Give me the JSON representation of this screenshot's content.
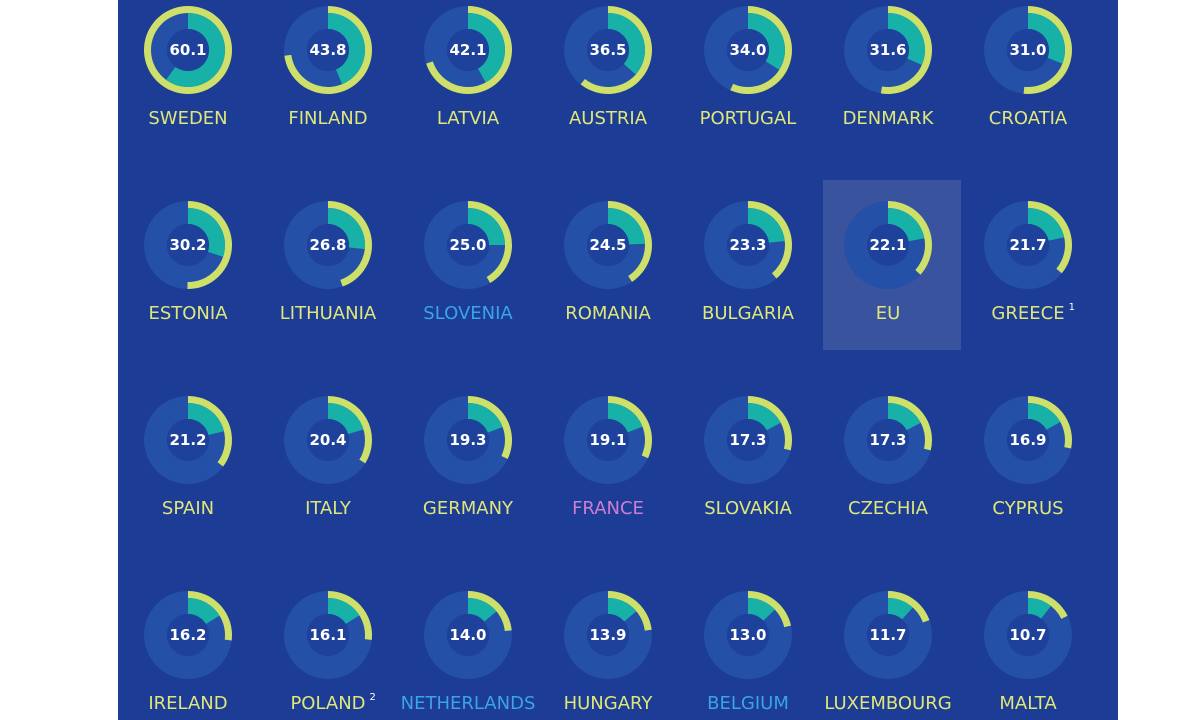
{
  "chart_data": {
    "type": "radial-bar",
    "title": "",
    "colors": {
      "background": "#1c3c95",
      "ring_track": "#2450a8",
      "inner_disc": "#1e419c",
      "arc_outer": "#cfe06a",
      "arc_inner": "#17b1a8",
      "highlight_box": "#5266a8",
      "label_default": "#dfe67a",
      "label_blue": "#3aa3ea",
      "label_pink": "#cc7fd0"
    },
    "columns": 7,
    "items": [
      {
        "country": "SWEDEN",
        "value": "60.1",
        "outer_pct": 100,
        "inner_pct": 60.1,
        "label_color": "default"
      },
      {
        "country": "FINLAND",
        "value": "43.8",
        "outer_pct": 72.9,
        "inner_pct": 43.8,
        "label_color": "default"
      },
      {
        "country": "LATVIA",
        "value": "42.1",
        "outer_pct": 70.0,
        "inner_pct": 42.1,
        "label_color": "default"
      },
      {
        "country": "AUSTRIA",
        "value": "36.5",
        "outer_pct": 60.7,
        "inner_pct": 36.5,
        "label_color": "default"
      },
      {
        "country": "PORTUGAL",
        "value": "34.0",
        "outer_pct": 56.6,
        "inner_pct": 34.0,
        "label_color": "default"
      },
      {
        "country": "DENMARK",
        "value": "31.6",
        "outer_pct": 52.6,
        "inner_pct": 31.6,
        "label_color": "default"
      },
      {
        "country": "CROATIA",
        "value": "31.0",
        "outer_pct": 51.6,
        "inner_pct": 31.0,
        "label_color": "default"
      },
      {
        "country": "ESTONIA",
        "value": "30.2",
        "outer_pct": 50.2,
        "inner_pct": 30.2,
        "label_color": "default"
      },
      {
        "country": "LITHUANIA",
        "value": "26.8",
        "outer_pct": 44.6,
        "inner_pct": 26.8,
        "label_color": "default"
      },
      {
        "country": "SLOVENIA",
        "value": "25.0",
        "outer_pct": 41.6,
        "inner_pct": 25.0,
        "label_color": "blue"
      },
      {
        "country": "ROMANIA",
        "value": "24.5",
        "outer_pct": 40.8,
        "inner_pct": 24.5,
        "label_color": "default"
      },
      {
        "country": "BULGARIA",
        "value": "23.3",
        "outer_pct": 38.8,
        "inner_pct": 23.3,
        "label_color": "default"
      },
      {
        "country": "EU",
        "value": "22.1",
        "outer_pct": 36.8,
        "inner_pct": 22.1,
        "label_color": "default",
        "highlight": true
      },
      {
        "country": "GREECE",
        "value": "21.7",
        "outer_pct": 36.1,
        "inner_pct": 21.7,
        "label_color": "default",
        "note": "1"
      },
      {
        "country": "SPAIN",
        "value": "21.2",
        "outer_pct": 35.3,
        "inner_pct": 21.2,
        "label_color": "default"
      },
      {
        "country": "ITALY",
        "value": "20.4",
        "outer_pct": 33.9,
        "inner_pct": 20.4,
        "label_color": "default"
      },
      {
        "country": "GERMANY",
        "value": "19.3",
        "outer_pct": 32.1,
        "inner_pct": 19.3,
        "label_color": "default"
      },
      {
        "country": "FRANCE",
        "value": "19.1",
        "outer_pct": 31.8,
        "inner_pct": 19.1,
        "label_color": "pink"
      },
      {
        "country": "SLOVAKIA",
        "value": "17.3",
        "outer_pct": 28.8,
        "inner_pct": 17.3,
        "label_color": "default"
      },
      {
        "country": "CZECHIA",
        "value": "17.3",
        "outer_pct": 28.8,
        "inner_pct": 17.3,
        "label_color": "default"
      },
      {
        "country": "CYPRUS",
        "value": "16.9",
        "outer_pct": 28.1,
        "inner_pct": 16.9,
        "label_color": "default"
      },
      {
        "country": "IRELAND",
        "value": "16.2",
        "outer_pct": 27.0,
        "inner_pct": 16.2,
        "label_color": "default"
      },
      {
        "country": "POLAND",
        "value": "16.1",
        "outer_pct": 26.8,
        "inner_pct": 16.1,
        "label_color": "default",
        "note": "2"
      },
      {
        "country": "NETHERLANDS",
        "value": "14.0",
        "outer_pct": 23.3,
        "inner_pct": 14.0,
        "label_color": "blue"
      },
      {
        "country": "HUNGARY",
        "value": "13.9",
        "outer_pct": 23.1,
        "inner_pct": 13.9,
        "label_color": "default"
      },
      {
        "country": "BELGIUM",
        "value": "13.0",
        "outer_pct": 21.6,
        "inner_pct": 13.0,
        "label_color": "blue"
      },
      {
        "country": "LUXEMBOURG",
        "value": "11.7",
        "outer_pct": 19.5,
        "inner_pct": 11.7,
        "label_color": "default"
      },
      {
        "country": "MALTA",
        "value": "10.7",
        "outer_pct": 17.8,
        "inner_pct": 10.7,
        "label_color": "default"
      }
    ]
  }
}
